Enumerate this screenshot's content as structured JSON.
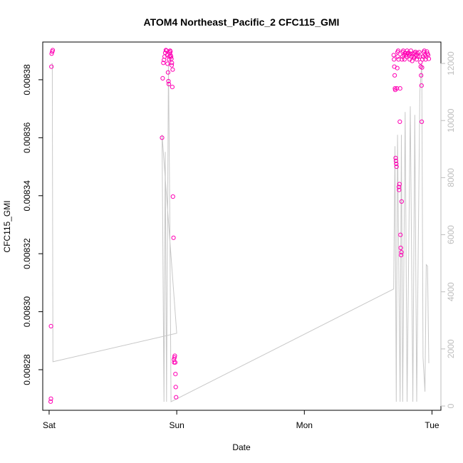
{
  "chart_data": {
    "type": "scatter",
    "title": "ATOM4 Northeast_Pacific_2 CFC115_GMI",
    "xlabel": "Date",
    "ylabel": "CFC115_GMI",
    "x_ticks": [
      "Sat",
      "Sun",
      "Mon",
      "Tue"
    ],
    "y_ticks": [
      "0.00828",
      "0.00830",
      "0.00832",
      "0.00834",
      "0.00836",
      "0.00838"
    ],
    "y2_ticks": [
      "0",
      "2000",
      "4000",
      "6000",
      "8000",
      "10000",
      "12000"
    ],
    "xlim_days": [
      -0.05,
      3.07
    ],
    "ylim": [
      0.008266,
      0.008393
    ],
    "y2lim": [
      -150,
      12750
    ],
    "colors": {
      "points": "#ff00b4",
      "line": "#c8c8c8",
      "right_axis": "#bdbdbd"
    },
    "series": [
      {
        "values": [
          [
            0.012,
            0.008269
          ],
          [
            0.014,
            0.00827
          ],
          [
            0.015,
            0.008295
          ],
          [
            0.018,
            0.0083845
          ],
          [
            0.02,
            0.008389
          ],
          [
            0.025,
            0.0083897
          ],
          [
            0.028,
            0.0083902
          ],
          [
            0.885,
            0.00836
          ],
          [
            0.89,
            0.0083805
          ],
          [
            0.895,
            0.0083858
          ],
          [
            0.9,
            0.0083868
          ],
          [
            0.905,
            0.008388
          ],
          [
            0.91,
            0.0083893
          ],
          [
            0.915,
            0.0083902
          ],
          [
            0.92,
            0.00839
          ],
          [
            0.925,
            0.0083885
          ],
          [
            0.928,
            0.0083855
          ],
          [
            0.932,
            0.0083825
          ],
          [
            0.935,
            0.0083795
          ],
          [
            0.938,
            0.0083785
          ],
          [
            0.94,
            0.008387
          ],
          [
            0.943,
            0.008388
          ],
          [
            0.945,
            0.0083893
          ],
          [
            0.948,
            0.00839
          ],
          [
            0.95,
            0.0083897
          ],
          [
            0.952,
            0.0083884
          ],
          [
            0.955,
            0.008388
          ],
          [
            0.958,
            0.0083872
          ],
          [
            0.96,
            0.008385
          ],
          [
            0.962,
            0.0083858
          ],
          [
            0.965,
            0.0083775
          ],
          [
            0.968,
            0.0083835
          ],
          [
            0.97,
            0.0083397
          ],
          [
            0.975,
            0.0083255
          ],
          [
            0.978,
            0.0082835
          ],
          [
            0.98,
            0.0082825
          ],
          [
            0.982,
            0.0082842
          ],
          [
            0.985,
            0.0082848
          ],
          [
            0.988,
            0.0082825
          ],
          [
            0.99,
            0.0082785
          ],
          [
            0.992,
            0.008274
          ],
          [
            0.995,
            0.0082705
          ],
          [
            2.7,
            0.0083885
          ],
          [
            2.703,
            0.008387
          ],
          [
            2.705,
            0.0083845
          ],
          [
            2.708,
            0.0083815
          ],
          [
            2.71,
            0.008377
          ],
          [
            2.712,
            0.0083765
          ],
          [
            2.715,
            0.008353
          ],
          [
            2.718,
            0.008352
          ],
          [
            2.72,
            0.008351
          ],
          [
            2.722,
            0.00835
          ],
          [
            2.725,
            0.008377
          ],
          [
            2.728,
            0.008384
          ],
          [
            2.73,
            0.0083895
          ],
          [
            2.732,
            0.008388
          ],
          [
            2.735,
            0.00839
          ],
          [
            2.738,
            0.008387
          ],
          [
            2.74,
            0.008343
          ],
          [
            2.742,
            0.008342
          ],
          [
            2.745,
            0.008344
          ],
          [
            2.748,
            0.0083655
          ],
          [
            2.75,
            0.008377
          ],
          [
            2.753,
            0.0083265
          ],
          [
            2.755,
            0.008322
          ],
          [
            2.758,
            0.0083195
          ],
          [
            2.76,
            0.0083205
          ],
          [
            2.762,
            0.008338
          ],
          [
            2.765,
            0.008387
          ],
          [
            2.768,
            0.008388
          ],
          [
            2.77,
            0.0083895
          ],
          [
            2.775,
            0.00839
          ],
          [
            2.78,
            0.0083885
          ],
          [
            2.785,
            0.008387
          ],
          [
            2.79,
            0.0083892
          ],
          [
            2.795,
            0.0083885
          ],
          [
            2.8,
            0.008388
          ],
          [
            2.805,
            0.00839
          ],
          [
            2.81,
            0.008389
          ],
          [
            2.815,
            0.0083893
          ],
          [
            2.82,
            0.0083885
          ],
          [
            2.825,
            0.008387
          ],
          [
            2.83,
            0.008389
          ],
          [
            2.835,
            0.00839
          ],
          [
            2.84,
            0.008388
          ],
          [
            2.845,
            0.0083865
          ],
          [
            2.85,
            0.008389
          ],
          [
            2.855,
            0.008388
          ],
          [
            2.86,
            0.0083875
          ],
          [
            2.865,
            0.0083892
          ],
          [
            2.87,
            0.0083896
          ],
          [
            2.875,
            0.0083885
          ],
          [
            2.88,
            0.008387
          ],
          [
            2.885,
            0.0083892
          ],
          [
            2.89,
            0.008388
          ],
          [
            2.9,
            0.0083895
          ],
          [
            2.905,
            0.008388
          ],
          [
            2.91,
            0.008386
          ],
          [
            2.912,
            0.0083845
          ],
          [
            2.915,
            0.0083815
          ],
          [
            2.918,
            0.008378
          ],
          [
            2.92,
            0.0083655
          ],
          [
            2.922,
            0.0083842
          ],
          [
            2.925,
            0.008387
          ],
          [
            2.93,
            0.008388
          ],
          [
            2.935,
            0.0083895
          ],
          [
            2.94,
            0.00839
          ],
          [
            2.945,
            0.0083885
          ],
          [
            2.95,
            0.008387
          ],
          [
            2.955,
            0.008388
          ],
          [
            2.96,
            0.0083897
          ],
          [
            2.965,
            0.008389
          ],
          [
            2.97,
            0.0083885
          ],
          [
            2.975,
            0.0083872
          ]
        ]
      },
      {
        "axis": "right",
        "values": [
          [
            0.018,
            12000
          ],
          [
            0.025,
            12000
          ],
          [
            0.03,
            1550
          ],
          [
            1.0,
            2550
          ],
          [
            0.885,
            9500
          ],
          [
            0.9,
            150
          ],
          [
            0.91,
            8900
          ],
          [
            0.92,
            150
          ],
          [
            0.935,
            12000
          ],
          [
            0.945,
            6900
          ],
          [
            0.955,
            150
          ],
          [
            2.7,
            4100
          ],
          [
            2.71,
            9100
          ],
          [
            2.72,
            150
          ],
          [
            2.73,
            9500
          ],
          [
            2.75,
            150
          ],
          [
            2.76,
            9500
          ],
          [
            2.77,
            150
          ],
          [
            2.79,
            10300
          ],
          [
            2.805,
            150
          ],
          [
            2.83,
            10500
          ],
          [
            2.85,
            150
          ],
          [
            2.865,
            10200
          ],
          [
            2.88,
            150
          ],
          [
            2.905,
            11000
          ],
          [
            2.92,
            12000
          ],
          [
            2.93,
            1700
          ],
          [
            2.945,
            500
          ],
          [
            2.955,
            4950
          ],
          [
            2.965,
            4900
          ],
          [
            2.975,
            1500
          ]
        ]
      }
    ]
  }
}
